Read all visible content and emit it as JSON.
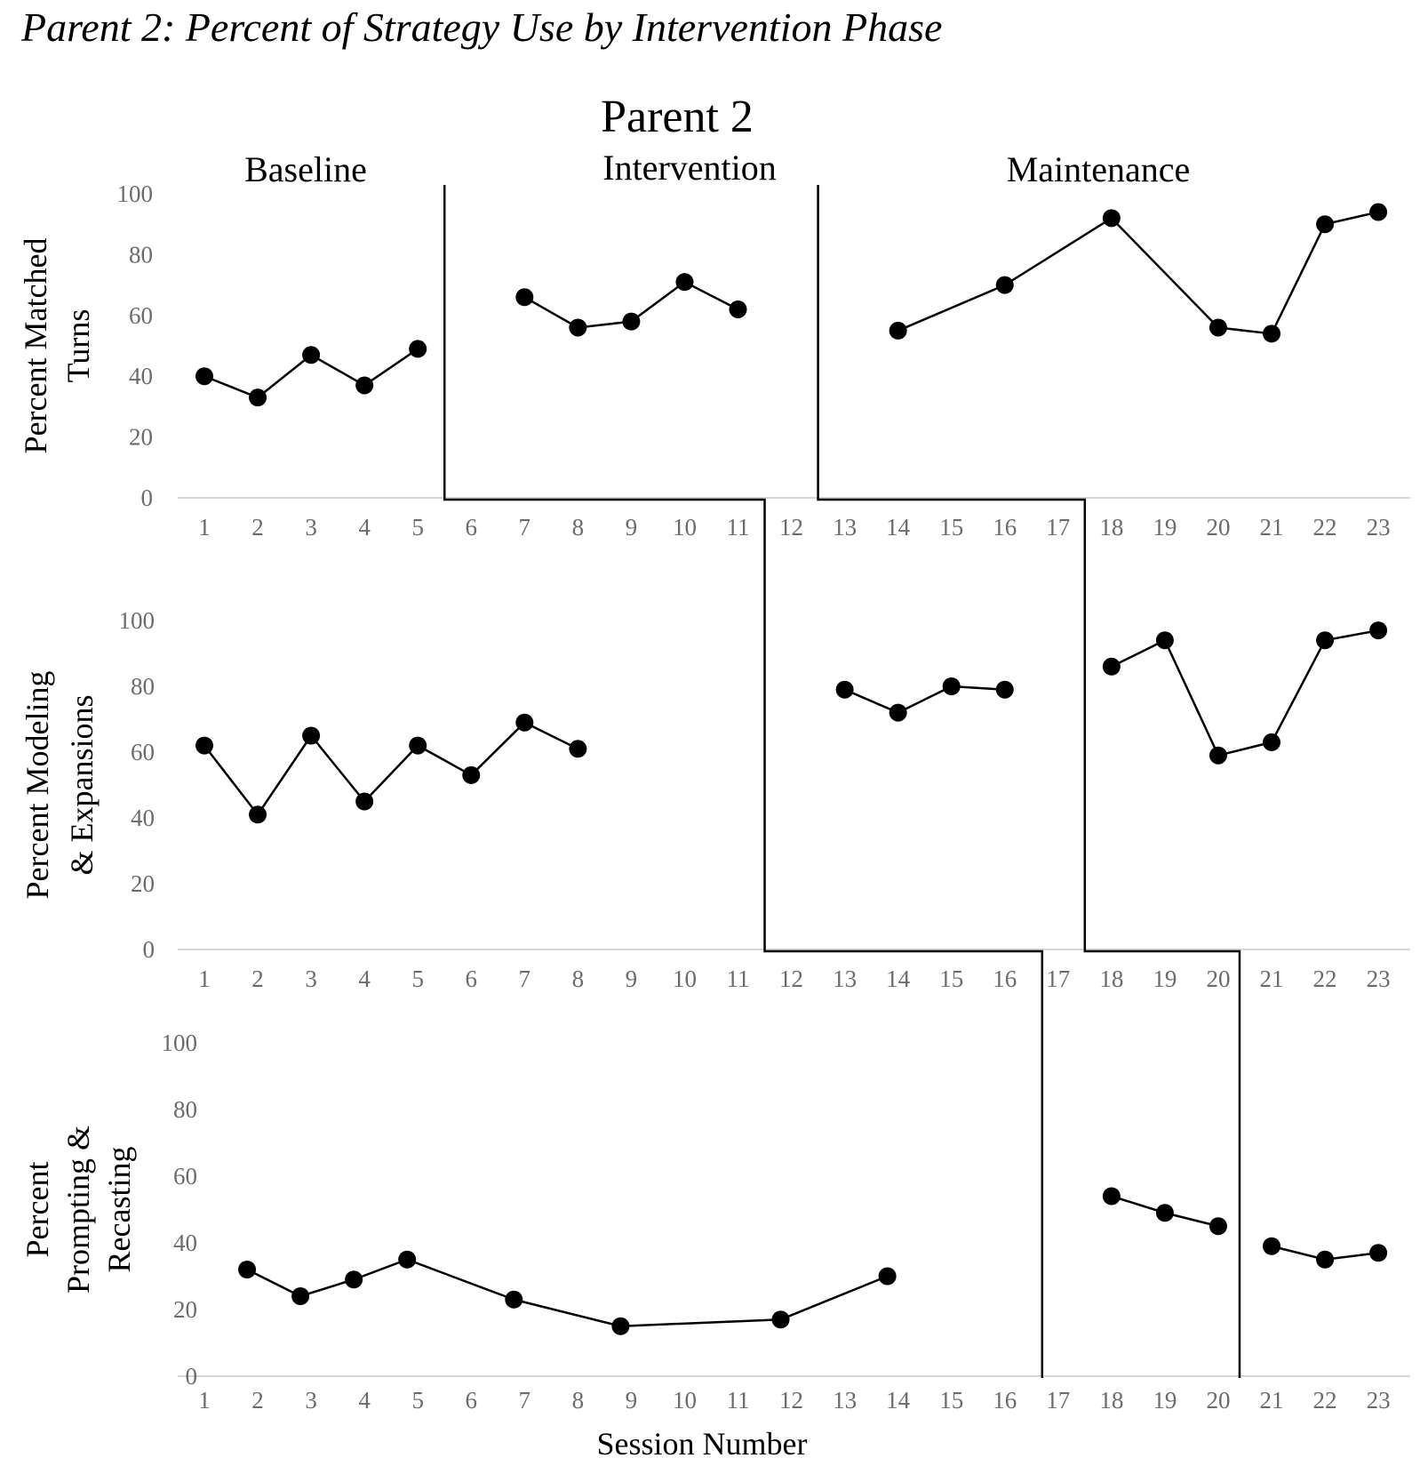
{
  "caption": "Parent 2: Percent of Strategy Use by Intervention Phase",
  "chart_data": {
    "type": "line",
    "title": "Parent 2",
    "xlabel": "Session Number",
    "phases": [
      "Baseline",
      "Intervention",
      "Maintenance"
    ],
    "x_ticks": [
      "1",
      "2",
      "3",
      "4",
      "5",
      "6",
      "7",
      "8",
      "9",
      "10",
      "11",
      "12",
      "13",
      "14",
      "15",
      "16",
      "17",
      "18",
      "19",
      "20",
      "21",
      "22",
      "23"
    ],
    "y_ticks": [
      "0",
      "20",
      "40",
      "60",
      "80",
      "100"
    ],
    "ylim": [
      0,
      100
    ],
    "panels": [
      {
        "ylabel": [
          "Percent Matched",
          "Turns"
        ],
        "phase_change_after": [
          5.5,
          12.5
        ],
        "segments": [
          {
            "phase": "Baseline",
            "points": [
              [
                1,
                40
              ],
              [
                2,
                33
              ],
              [
                3,
                47
              ],
              [
                4,
                37
              ],
              [
                5,
                49
              ]
            ]
          },
          {
            "phase": "Intervention",
            "points": [
              [
                7,
                66
              ],
              [
                8,
                56
              ],
              [
                9,
                58
              ],
              [
                10,
                71
              ],
              [
                11,
                62
              ]
            ]
          },
          {
            "phase": "Maintenance",
            "points": [
              [
                14,
                55
              ],
              [
                16,
                70
              ],
              [
                18,
                92
              ],
              [
                20,
                56
              ],
              [
                21,
                54
              ],
              [
                22,
                90
              ],
              [
                23,
                94
              ]
            ]
          }
        ]
      },
      {
        "ylabel": [
          "Percent Modeling",
          "& Expansions"
        ],
        "phase_change_after": [
          11.5,
          17.5
        ],
        "segments": [
          {
            "phase": "Baseline",
            "points": [
              [
                1,
                62
              ],
              [
                2,
                41
              ],
              [
                3,
                65
              ],
              [
                4,
                45
              ],
              [
                5,
                62
              ],
              [
                6,
                53
              ],
              [
                7,
                69
              ],
              [
                8,
                61
              ]
            ]
          },
          {
            "phase": "Intervention",
            "points": [
              [
                13,
                79
              ],
              [
                14,
                72
              ],
              [
                15,
                80
              ],
              [
                16,
                79
              ]
            ]
          },
          {
            "phase": "Maintenance",
            "points": [
              [
                18,
                86
              ],
              [
                19,
                94
              ],
              [
                20,
                59
              ],
              [
                21,
                63
              ],
              [
                22,
                94
              ],
              [
                23,
                97
              ]
            ]
          }
        ]
      },
      {
        "ylabel": [
          "Percent",
          "Prompting &",
          "Recasting"
        ],
        "phase_change_after": [
          16.7,
          20.4
        ],
        "segments": [
          {
            "phase": "Baseline",
            "points": [
              [
                1.8,
                32
              ],
              [
                2.8,
                24
              ],
              [
                3.8,
                29
              ],
              [
                4.8,
                35
              ],
              [
                6.8,
                23
              ],
              [
                8.8,
                15
              ],
              [
                11.8,
                17
              ],
              [
                13.8,
                30
              ]
            ]
          },
          {
            "phase": "Intervention",
            "points": [
              [
                18,
                54
              ],
              [
                19,
                49
              ],
              [
                20,
                45
              ]
            ]
          },
          {
            "phase": "Maintenance",
            "points": [
              [
                21,
                39
              ],
              [
                22,
                35
              ],
              [
                23,
                37
              ]
            ]
          }
        ]
      }
    ]
  }
}
